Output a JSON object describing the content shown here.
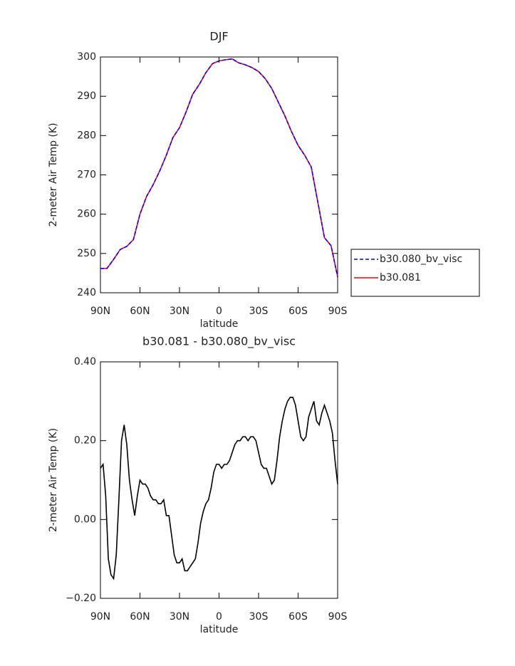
{
  "chart_data": [
    {
      "type": "line",
      "title": "DJF",
      "xlabel": "latitude",
      "ylabel": "2-meter Air Temp (K)",
      "x": [
        90,
        85,
        80,
        75,
        70,
        65,
        60,
        55,
        50,
        45,
        40,
        35,
        30,
        25,
        20,
        15,
        10,
        5,
        0,
        -5,
        -10,
        -15,
        -20,
        -25,
        -30,
        -35,
        -40,
        -45,
        -50,
        -55,
        -60,
        -65,
        -70,
        -75,
        -80,
        -85,
        -90
      ],
      "series": [
        {
          "name": "b30.080_bv_visc",
          "color": "#0000ff",
          "linestyle": "dashed",
          "values": [
            246.2,
            246.2,
            248.5,
            251,
            251.8,
            253.5,
            260,
            264.5,
            267.5,
            271,
            275,
            279.5,
            282,
            286,
            290.5,
            293,
            296,
            298.3,
            299,
            299.3,
            299.5,
            298.5,
            298,
            297.3,
            296.3,
            294.5,
            292,
            288.5,
            285,
            281,
            277.5,
            275,
            272,
            263,
            254,
            252,
            244
          ]
        },
        {
          "name": "b30.081",
          "color": "#ff0000",
          "linestyle": "solid",
          "values": [
            246.2,
            246.2,
            248.5,
            251,
            251.8,
            253.5,
            260,
            264.5,
            267.5,
            271,
            275,
            279.5,
            282,
            286,
            290.5,
            293,
            296,
            298.3,
            299,
            299.3,
            299.5,
            298.5,
            298,
            297.3,
            296.3,
            294.5,
            292,
            288.5,
            285,
            281,
            277.5,
            275,
            272,
            263,
            254,
            252,
            244.1
          ]
        }
      ],
      "xlim": [
        90,
        -90
      ],
      "xticks": [
        {
          "value": 90,
          "label": "90N"
        },
        {
          "value": 60,
          "label": "60N"
        },
        {
          "value": 30,
          "label": "30N"
        },
        0,
        {
          "value": -30,
          "label": "30S"
        },
        {
          "value": -60,
          "label": "60S"
        },
        {
          "value": -90,
          "label": "90S"
        }
      ],
      "ylim": [
        240,
        300
      ],
      "yticks": [
        240,
        250,
        260,
        270,
        280,
        290,
        300
      ],
      "legend": "right"
    },
    {
      "type": "line",
      "title": "b30.081 - b30.080_bv_visc",
      "xlabel": "latitude",
      "ylabel": "2-meter Air Temp (K)",
      "x": [
        90,
        88,
        86,
        84,
        82,
        80,
        78,
        76,
        74,
        72,
        70,
        68,
        66,
        64,
        62,
        60,
        58,
        56,
        54,
        52,
        50,
        48,
        46,
        44,
        42,
        40,
        38,
        36,
        34,
        32,
        30,
        28,
        26,
        24,
        22,
        20,
        18,
        16,
        14,
        12,
        10,
        8,
        6,
        4,
        2,
        0,
        -2,
        -4,
        -6,
        -8,
        -10,
        -12,
        -14,
        -16,
        -18,
        -20,
        -22,
        -24,
        -26,
        -28,
        -30,
        -32,
        -34,
        -36,
        -38,
        -40,
        -42,
        -44,
        -46,
        -48,
        -50,
        -52,
        -54,
        -56,
        -58,
        -60,
        -62,
        -64,
        -66,
        -68,
        -70,
        -72,
        -74,
        -76,
        -78,
        -80,
        -82,
        -84,
        -86,
        -88,
        -90
      ],
      "series": [
        {
          "color": "#000000",
          "linestyle": "solid",
          "values": [
            0.13,
            0.14,
            0.06,
            -0.1,
            -0.14,
            -0.15,
            -0.09,
            0.05,
            0.2,
            0.24,
            0.19,
            0.1,
            0.05,
            0.01,
            0.06,
            0.1,
            0.09,
            0.09,
            0.08,
            0.06,
            0.05,
            0.05,
            0.04,
            0.04,
            0.05,
            0.01,
            0.01,
            -0.04,
            -0.09,
            -0.11,
            -0.11,
            -0.1,
            -0.13,
            -0.13,
            -0.12,
            -0.11,
            -0.1,
            -0.06,
            -0.01,
            0.02,
            0.04,
            0.05,
            0.08,
            0.12,
            0.14,
            0.14,
            0.13,
            0.14,
            0.14,
            0.15,
            0.17,
            0.19,
            0.2,
            0.2,
            0.21,
            0.21,
            0.2,
            0.21,
            0.21,
            0.2,
            0.17,
            0.14,
            0.13,
            0.13,
            0.11,
            0.09,
            0.1,
            0.15,
            0.21,
            0.25,
            0.28,
            0.3,
            0.31,
            0.31,
            0.29,
            0.25,
            0.21,
            0.2,
            0.21,
            0.26,
            0.28,
            0.3,
            0.25,
            0.24,
            0.27,
            0.29,
            0.27,
            0.25,
            0.22,
            0.15,
            0.09
          ]
        }
      ],
      "xlim": [
        90,
        -90
      ],
      "xticks": [
        {
          "value": 90,
          "label": "90N"
        },
        {
          "value": 60,
          "label": "60N"
        },
        {
          "value": 30,
          "label": "30N"
        },
        0,
        {
          "value": -30,
          "label": "30S"
        },
        {
          "value": -60,
          "label": "60S"
        },
        {
          "value": -90,
          "label": "90S"
        }
      ],
      "ylim": [
        -0.2,
        0.4
      ],
      "yticks": [
        {
          "value": -0.2,
          "label": "−0.20"
        },
        {
          "value": 0,
          "label": "0.00"
        },
        {
          "value": 0.2,
          "label": "0.20"
        },
        {
          "value": 0.4,
          "label": "0.40"
        }
      ]
    }
  ]
}
